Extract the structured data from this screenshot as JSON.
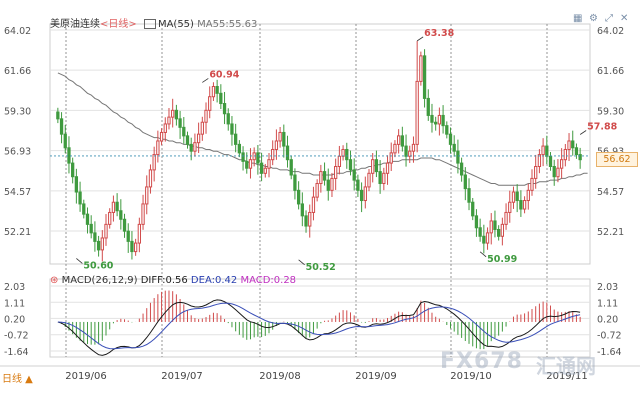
{
  "header": {
    "symbol_name": "美原油连续",
    "timeframe_label": "<日线>",
    "ma_label": "MA(55)",
    "ma_value_text": "MA55:55.63"
  },
  "macd_header": {
    "params": "MACD(26,12,9)",
    "diff_text": "DIFF:0.56",
    "dea_text": "DEA:0.42",
    "macd_text": "MACD:0.28"
  },
  "current_price": "56.62",
  "timeframe_button": "日线 ▲",
  "watermark": {
    "brand": "FX678",
    "cn": "汇通网"
  },
  "colors": {
    "up": "#d14b4b",
    "down": "#3f9a3f",
    "ma": "#777777",
    "diff": "#1a1a1a",
    "dea": "#3a4fb8",
    "dashed": "#3a8fb0",
    "grid": "#e2e2e2"
  },
  "chart_data": [
    {
      "type": "candlestick",
      "title": "美原油连续",
      "yticks": [
        64.02,
        61.66,
        59.3,
        56.93,
        54.57,
        52.21
      ],
      "xticks": [
        "2019/06",
        "2019/07",
        "2019/08",
        "2019/09",
        "2019/10",
        "2019/11"
      ],
      "ylim": [
        50.0,
        64.5
      ],
      "annotations": [
        {
          "label": "50.60",
          "type": "low",
          "color": "#3f9a3f"
        },
        {
          "label": "60.94",
          "type": "high",
          "color": "#d14b4b"
        },
        {
          "label": "50.52",
          "type": "low",
          "color": "#3f9a3f"
        },
        {
          "label": "63.38",
          "type": "high",
          "color": "#d14b4b"
        },
        {
          "label": "50.99",
          "type": "low",
          "color": "#3f9a3f"
        },
        {
          "label": "57.88",
          "type": "high",
          "color": "#d14b4b"
        }
      ],
      "current_price": 56.62,
      "close": [
        58.8,
        57.9,
        57.1,
        56.2,
        55.4,
        54.5,
        53.8,
        53.2,
        52.6,
        52.1,
        51.6,
        51.1,
        51.8,
        52.6,
        53.3,
        53.9,
        53.4,
        52.9,
        52.2,
        51.6,
        51.0,
        51.5,
        52.6,
        53.8,
        54.8,
        55.8,
        56.7,
        57.5,
        58.0,
        58.5,
        58.9,
        59.3,
        58.8,
        58.3,
        57.8,
        57.3,
        56.9,
        57.4,
        57.9,
        58.6,
        59.3,
        60.1,
        60.7,
        60.3,
        59.7,
        59.1,
        58.5,
        57.9,
        57.3,
        56.8,
        56.3,
        55.9,
        56.4,
        56.8,
        56.2,
        55.6,
        55.9,
        56.4,
        57.0,
        57.5,
        58.0,
        57.2,
        56.4,
        55.5,
        54.6,
        53.8,
        53.1,
        52.5,
        53.3,
        54.2,
        55.0,
        55.7,
        55.2,
        54.6,
        55.3,
        56.0,
        56.6,
        57.0,
        56.4,
        55.8,
        55.2,
        54.6,
        54.0,
        54.8,
        55.6,
        56.4,
        55.7,
        55.0,
        55.6,
        56.2,
        56.8,
        57.3,
        57.8,
        57.2,
        56.6,
        56.9,
        57.3,
        61.0,
        62.5,
        60.0,
        59.0,
        58.6,
        58.5,
        59.0,
        58.4,
        57.9,
        57.3,
        56.9,
        56.2,
        55.5,
        54.7,
        53.9,
        53.1,
        52.4,
        51.9,
        51.5,
        52.1,
        52.8,
        52.3,
        51.9,
        52.6,
        53.3,
        53.9,
        54.5,
        54.0,
        53.5,
        54.0,
        54.6,
        55.3,
        56.0,
        56.7,
        57.2,
        56.6,
        56.0,
        55.4,
        55.9,
        56.4,
        57.0,
        57.5,
        57.1,
        56.7,
        56.4
      ]
    },
    {
      "type": "line",
      "name": "MA(55)",
      "values": [
        61.5,
        61.4,
        61.3,
        61.1,
        61.0,
        60.8,
        60.7,
        60.5,
        60.3,
        60.2,
        60.0,
        59.9,
        59.7,
        59.6,
        59.4,
        59.2,
        59.1,
        58.9,
        58.8,
        58.6,
        58.5,
        58.3,
        58.2,
        58.0,
        57.9,
        57.8,
        57.7,
        57.7,
        57.6,
        57.6,
        57.5,
        57.5,
        57.4,
        57.4,
        57.3,
        57.3,
        57.2,
        57.2,
        57.1,
        57.1,
        57.0,
        57.0,
        56.9,
        56.9,
        56.8,
        56.7,
        56.7,
        56.6,
        56.5,
        56.4,
        56.4,
        56.3,
        56.2,
        56.2,
        56.1,
        56.1,
        56.0,
        56.0,
        55.9,
        55.9,
        55.8,
        55.8,
        55.8,
        55.7,
        55.7,
        55.7,
        55.6,
        55.6,
        55.6,
        55.5,
        55.5,
        55.5,
        55.5,
        55.5,
        55.5,
        55.6,
        55.6,
        55.6,
        55.7,
        55.7,
        55.8,
        55.8,
        55.9,
        55.9,
        56.0,
        56.0,
        56.1,
        56.1,
        56.2,
        56.2,
        56.3,
        56.3,
        56.3,
        56.4,
        56.4,
        56.4,
        56.4,
        56.4,
        56.5,
        56.5,
        56.5,
        56.5,
        56.4,
        56.4,
        56.3,
        56.2,
        56.1,
        56.0,
        55.9,
        55.8,
        55.7,
        55.6,
        55.5,
        55.4,
        55.3,
        55.2,
        55.1,
        55.0,
        55.0,
        54.9,
        54.9,
        54.9,
        54.9,
        54.9,
        54.9,
        54.9,
        54.9,
        55.0,
        55.0,
        55.0,
        55.1,
        55.1,
        55.1,
        55.2,
        55.2,
        55.2,
        55.3,
        55.3,
        55.4,
        55.4,
        55.5,
        55.5,
        55.6,
        55.6
      ]
    },
    {
      "type": "bar+line",
      "title": "MACD(26,12,9)",
      "yticks": [
        2.03,
        1.11,
        0.2,
        -0.72,
        -1.64
      ],
      "ylim": [
        -2.4,
        2.4
      ],
      "latest": {
        "DIFF": 0.56,
        "DEA": 0.42,
        "MACD": 0.28
      }
    }
  ]
}
